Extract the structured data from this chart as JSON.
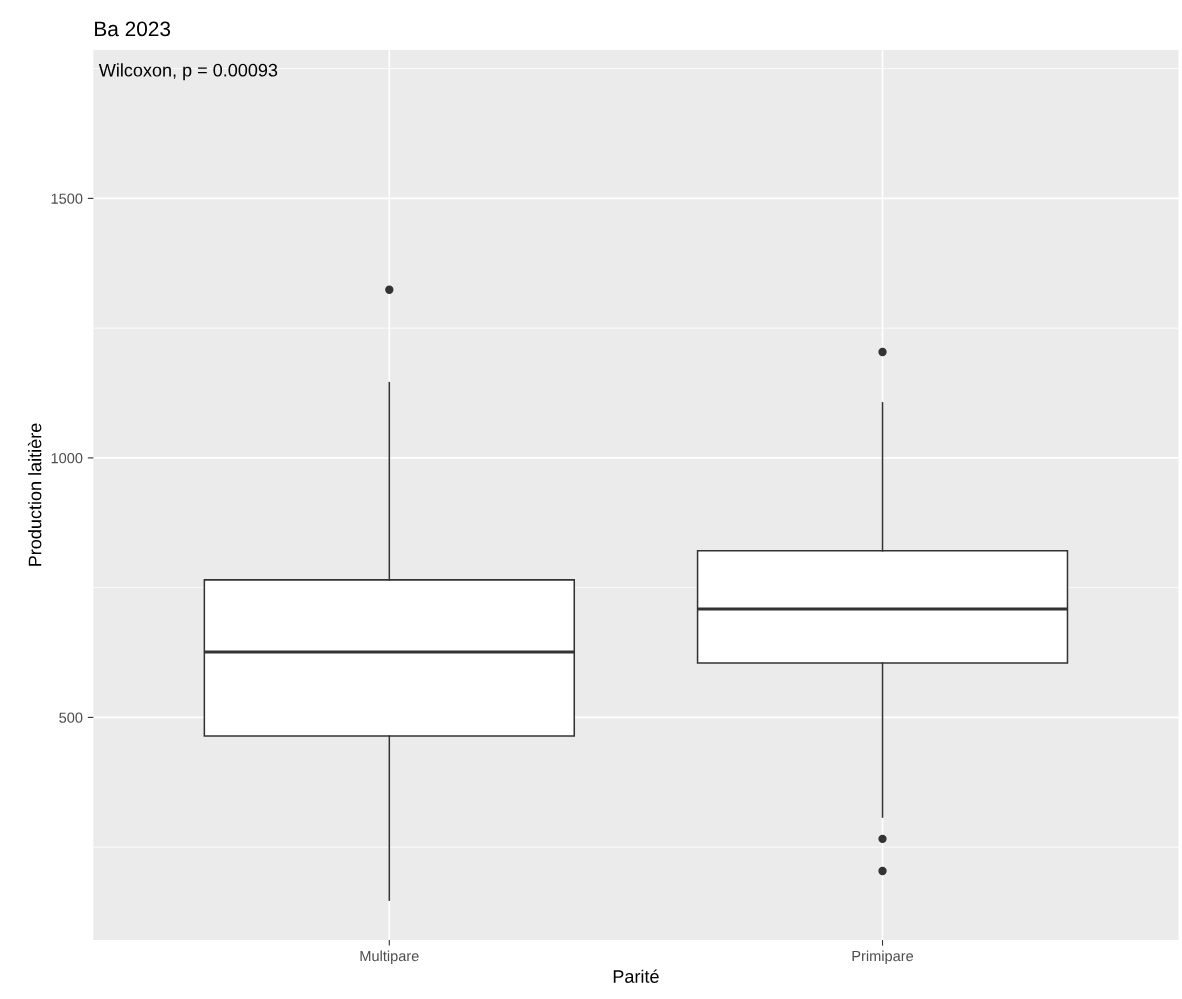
{
  "chart_data": {
    "type": "box",
    "title": "Ba 2023",
    "xlabel": "Parité",
    "ylabel": "Production laitière",
    "categories": [
      "Multipare",
      "Primipare"
    ],
    "boxes": [
      {
        "low": 148,
        "q1": 464,
        "median": 626,
        "q3": 765,
        "high": 1145,
        "outliers": [
          1324
        ]
      },
      {
        "low": 308,
        "q1": 605,
        "median": 709,
        "q3": 821,
        "high": 1106,
        "outliers": [
          1204,
          266,
          204
        ]
      }
    ],
    "ylim": [
      71,
      1786
    ],
    "yticks": [
      {
        "value": 250,
        "label": null
      },
      500,
      {
        "value": 750,
        "label": null
      },
      1000,
      {
        "value": 1250,
        "label": null
      },
      1500,
      {
        "value": 1750,
        "label": null
      }
    ],
    "grid": true,
    "annotations": [
      "Wilcoxon, p = 0.00093"
    ]
  }
}
